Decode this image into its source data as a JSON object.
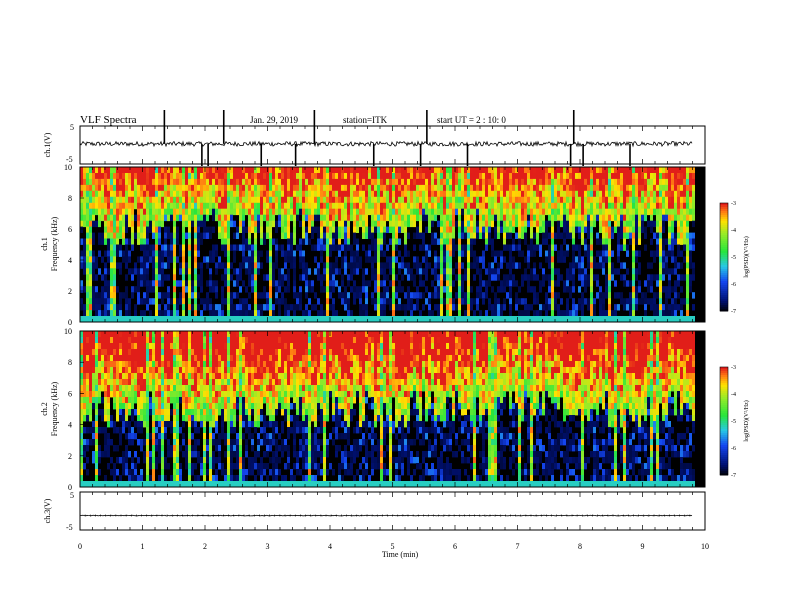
{
  "header": {
    "title": "VLF Spectra",
    "date": "Jan. 29, 2019",
    "station": "station=ITK",
    "start_ut": "start UT =  2 : 10: 0"
  },
  "colors": {
    "background": "#000000",
    "low": "#001070",
    "mid": "#1fe63a",
    "high": "#ffe000",
    "peak": "#e8201a",
    "waveform": "#000000"
  },
  "chart_data": [
    {
      "type": "line",
      "panel": "ch1-waveform",
      "ylabel": "ch.1(V)",
      "ylim": [
        -5,
        5
      ],
      "yticks": [
        "5",
        "-5"
      ],
      "xlim": [
        0,
        10
      ],
      "baseline": 0.3,
      "spikes_at_min": [
        1.35,
        1.95,
        2.05,
        2.3,
        2.9,
        3.45,
        3.75,
        4.7,
        5.45,
        5.55,
        6.2,
        7.85,
        7.9,
        8.05,
        8.8
      ]
    },
    {
      "type": "heatmap",
      "panel": "ch1-spectrogram",
      "ylabel": "Frequency (kHz)",
      "ylabel_prefix": "ch.1",
      "ylim": [
        0,
        10
      ],
      "yticks": [
        "0",
        "2",
        "4",
        "6",
        "8",
        "10"
      ],
      "xlim": [
        0,
        9.8
      ],
      "noise_floor_khz": 6,
      "colorbar": {
        "label": "log(PSD)(V²/Hz)",
        "range": [
          -7,
          -3
        ],
        "ticks": [
          "-3",
          "-4",
          "-5",
          "-6",
          "-7"
        ]
      }
    },
    {
      "type": "heatmap",
      "panel": "ch2-spectrogram",
      "ylabel": "Frequency (kHz)",
      "ylabel_prefix": "ch.2",
      "ylim": [
        0,
        10
      ],
      "yticks": [
        "0",
        "2",
        "4",
        "6",
        "8",
        "10"
      ],
      "xlim": [
        0,
        9.8
      ],
      "noise_floor_khz": 5,
      "colorbar": {
        "label": "log(PSD)(V²/Hz)",
        "range": [
          -7,
          -3
        ],
        "ticks": [
          "-3",
          "-4",
          "-5",
          "-6",
          "-7"
        ]
      }
    },
    {
      "type": "line",
      "panel": "ch3-waveform",
      "ylabel": "ch.3(V)",
      "ylim": [
        -5,
        5
      ],
      "yticks": [
        "5",
        "-5"
      ],
      "xlim": [
        0,
        10
      ],
      "baseline": -1.2,
      "xlabel": "Time  (min)",
      "xticks": [
        "0",
        "1",
        "2",
        "3",
        "4",
        "5",
        "6",
        "7",
        "8",
        "9",
        "10"
      ]
    }
  ]
}
